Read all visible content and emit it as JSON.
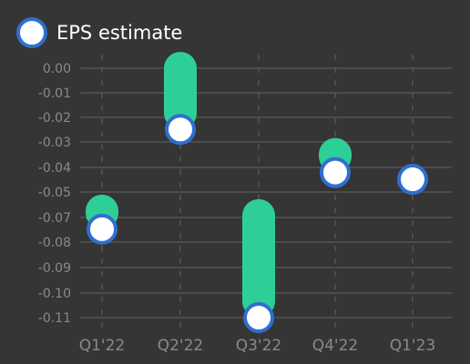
{
  "legend": {
    "label": "EPS estimate"
  },
  "colors": {
    "background": "#353535",
    "bar": "#2ecf96",
    "marker_fill": "#ffffff",
    "marker_stroke": "#2f6fd1",
    "grid": "#555555",
    "tick_text": "#8a8a8a"
  },
  "chart_data": {
    "type": "range-bar-with-markers",
    "categories": [
      "Q1'22",
      "Q2'22",
      "Q3'22",
      "Q4'22",
      "Q1'23"
    ],
    "y_tick_labels": [
      "0.00",
      "-0.01",
      "-0.02",
      "-0.03",
      "-0.04",
      "-0.05",
      "-0.07",
      "-0.08",
      "-0.09",
      "-0.10",
      "-0.11"
    ],
    "series": [
      {
        "name": "EPS estimate",
        "values": [
          -0.071,
          -0.027,
          -0.11,
          -0.046,
          -0.049
        ]
      }
    ],
    "ranges": [
      {
        "high": -0.063,
        "low": -0.071
      },
      {
        "high": 0.0,
        "low": -0.027
      },
      {
        "high": -0.065,
        "low": -0.11
      },
      {
        "high": -0.038,
        "low": -0.046
      },
      null
    ],
    "grid": true,
    "legend_position": "top-left"
  }
}
